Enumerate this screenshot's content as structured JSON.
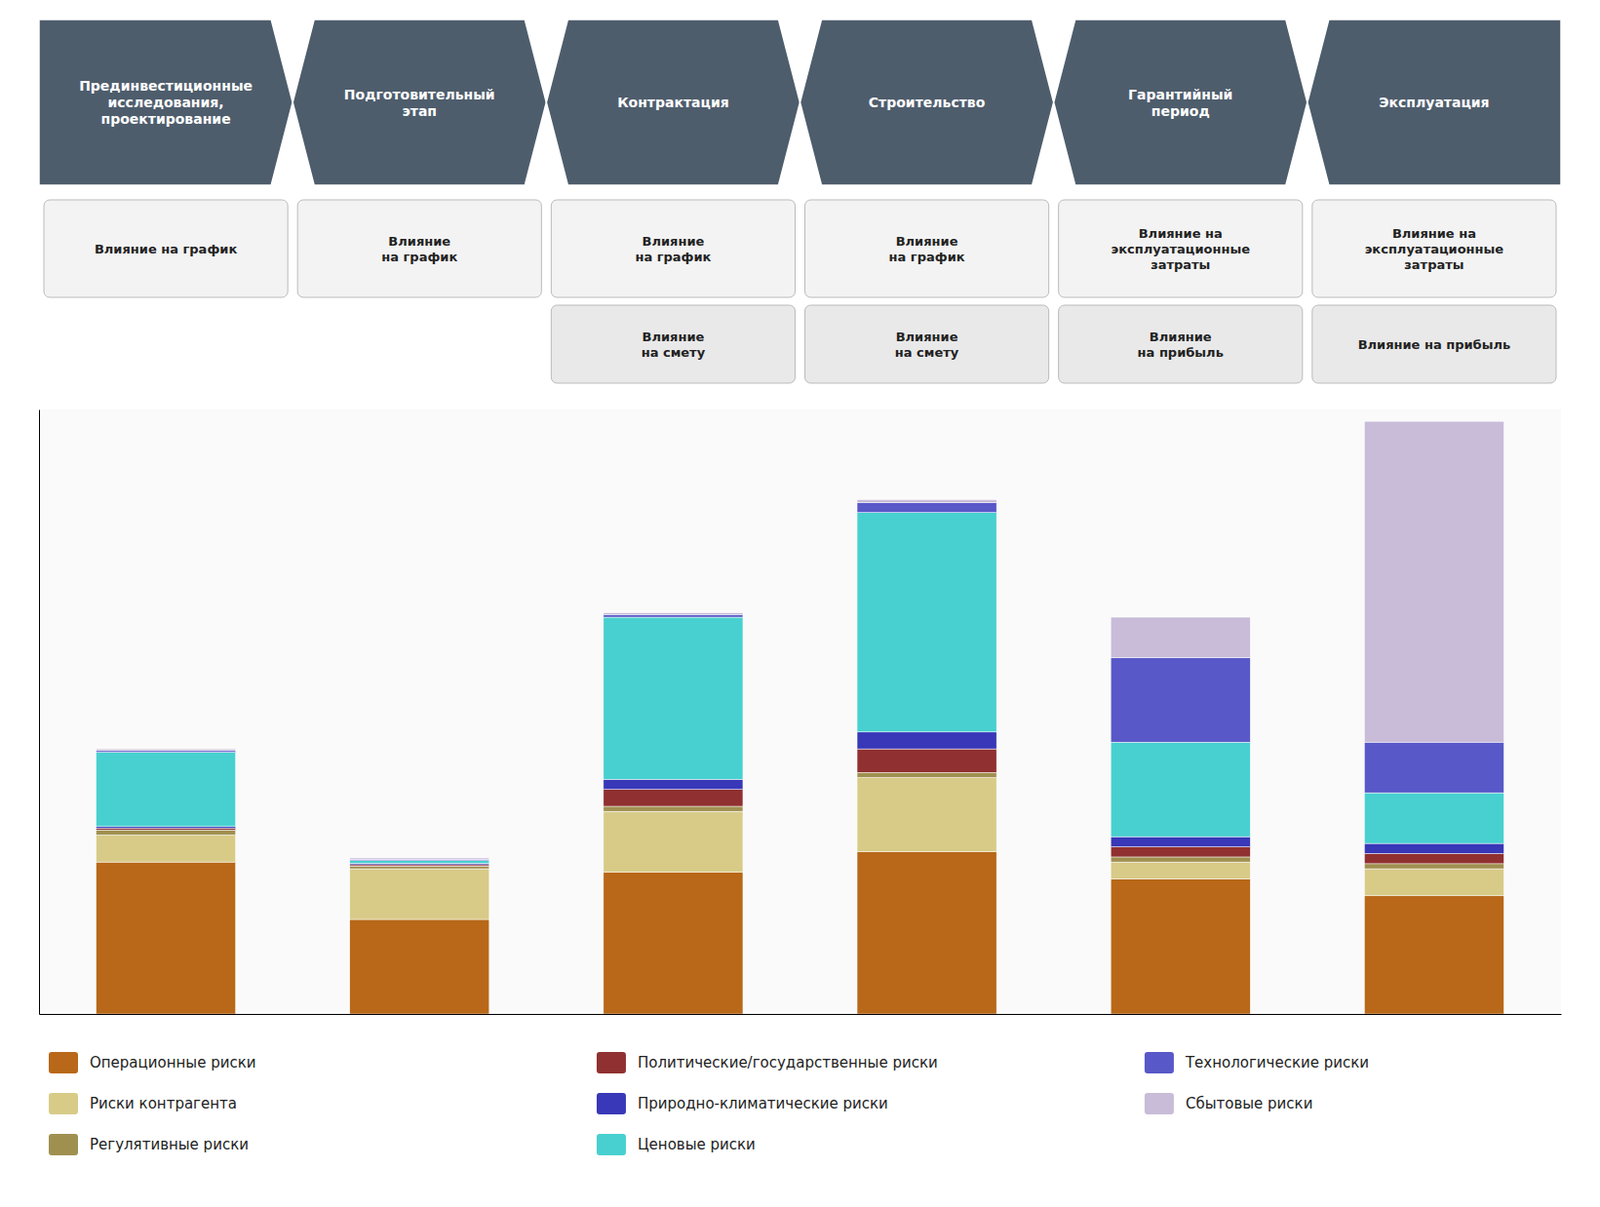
{
  "chart_data": {
    "type": "bar",
    "stacked": true,
    "categories": [
      "Прединвестиционные\nисследования,\nпроектирование",
      "Подготовительный\nэтап",
      "Контрактация",
      "Строительство",
      "Гарантийный\nпериод",
      "Эксплуатация"
    ],
    "annotations": [
      [
        "Влияние на график",
        "Влияние\nна график",
        "Влияние\nна график",
        "Влияние\nна график",
        "Влияние на\nэксплуатационные\nзатраты",
        "Влияние на\nэксплуатационные\nзатраты"
      ],
      [
        null,
        null,
        "Влияние\nна смету",
        "Влияние\nна смету",
        "Влияние\nна прибыль",
        "Влияние на прибыль"
      ]
    ],
    "series": [
      {
        "name": "Операционные риски",
        "color": "#b86818",
        "values": [
          4.5,
          2.8,
          4.2,
          4.8,
          4.0,
          3.5
        ]
      },
      {
        "name": "Риски контрагента",
        "color": "#d8cb88",
        "values": [
          0.8,
          1.5,
          1.8,
          2.2,
          0.5,
          0.8
        ]
      },
      {
        "name": "Регулятивные риски",
        "color": "#a09050",
        "values": [
          0.15,
          0.08,
          0.15,
          0.15,
          0.15,
          0.15
        ]
      },
      {
        "name": "Политические/государственные риски",
        "color": "#903030",
        "values": [
          0.05,
          0.04,
          0.5,
          0.7,
          0.3,
          0.3
        ]
      },
      {
        "name": "Природно-климатические риски",
        "color": "#3838b8",
        "values": [
          0.05,
          0.04,
          0.3,
          0.5,
          0.3,
          0.3
        ]
      },
      {
        "name": "Ценовые риски",
        "color": "#48d0d0",
        "values": [
          2.2,
          0.08,
          4.8,
          6.5,
          2.8,
          1.5
        ]
      },
      {
        "name": "Технологические риски",
        "color": "#5858c8",
        "values": [
          0.05,
          0.04,
          0.08,
          0.3,
          2.5,
          1.5
        ]
      },
      {
        "name": "Сбытовые риски",
        "color": "#c8bcd8",
        "values": [
          0.05,
          0.04,
          0.05,
          0.08,
          1.2,
          9.5
        ]
      }
    ],
    "ylim": [
      0,
      17.901
    ],
    "tick_labels": false,
    "grid": false,
    "legend": "bottom"
  }
}
